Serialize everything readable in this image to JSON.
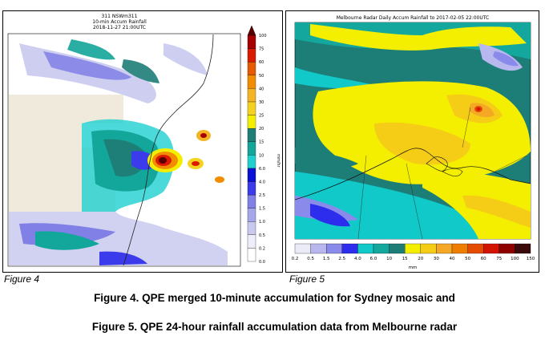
{
  "figure4": {
    "label": "Figure 4",
    "plot_title_line1": "311 NSWm311",
    "plot_title_line2": "10-min Accum Rainfall",
    "plot_title_line3": "2018-11-27 21:00UTC",
    "colorbar_unit": "mm/hr",
    "colorbar_ticks": [
      "0.0",
      "0.2",
      "0.5",
      "1.0",
      "1.5",
      "2.5",
      "4.0",
      "6.0",
      "10",
      "15",
      "20",
      "25",
      "30",
      "40",
      "50",
      "60",
      "75",
      "100"
    ],
    "colorbar_colors": [
      "#ffffff",
      "#eeeefa",
      "#c9c9f0",
      "#a6a6ea",
      "#8080e6",
      "#3b3bec",
      "#0a10d8",
      "#1fd0cf",
      "#13a69a",
      "#1e7e78",
      "#f4ef00",
      "#f5d21e",
      "#f5b423",
      "#f28c00",
      "#e85a00",
      "#db1a00",
      "#a80000",
      "#5a0000"
    ]
  },
  "figure5": {
    "label": "Figure 5",
    "plot_title": "Melbourne Radar Daily Accum Rainfall to 2017-02-05 22:00UTC",
    "colorbar_unit": "mm",
    "colorbar_ticks": [
      "0.2",
      "0.5",
      "1.5",
      "2.5",
      "4.0",
      "6.0",
      "10",
      "15",
      "20",
      "30",
      "40",
      "50",
      "60",
      "75",
      "100",
      "150"
    ],
    "colorbar_colors": [
      "#ffffff",
      "#ebebf8",
      "#b8b8ee",
      "#8a8aea",
      "#2d2dee",
      "#12c9c9",
      "#14a79d",
      "#1d7e78",
      "#f4ef00",
      "#f5cd17",
      "#f5a825",
      "#ee7d00",
      "#e34c00",
      "#d31400",
      "#8f0000",
      "#3a0a0a"
    ]
  },
  "captions": {
    "fig4": "Figure 4. QPE merged 10-minute accumulation for Sydney mosaic and",
    "fig5": "Figure 5. QPE 24-hour rainfall accumulation data from Melbourne radar"
  }
}
